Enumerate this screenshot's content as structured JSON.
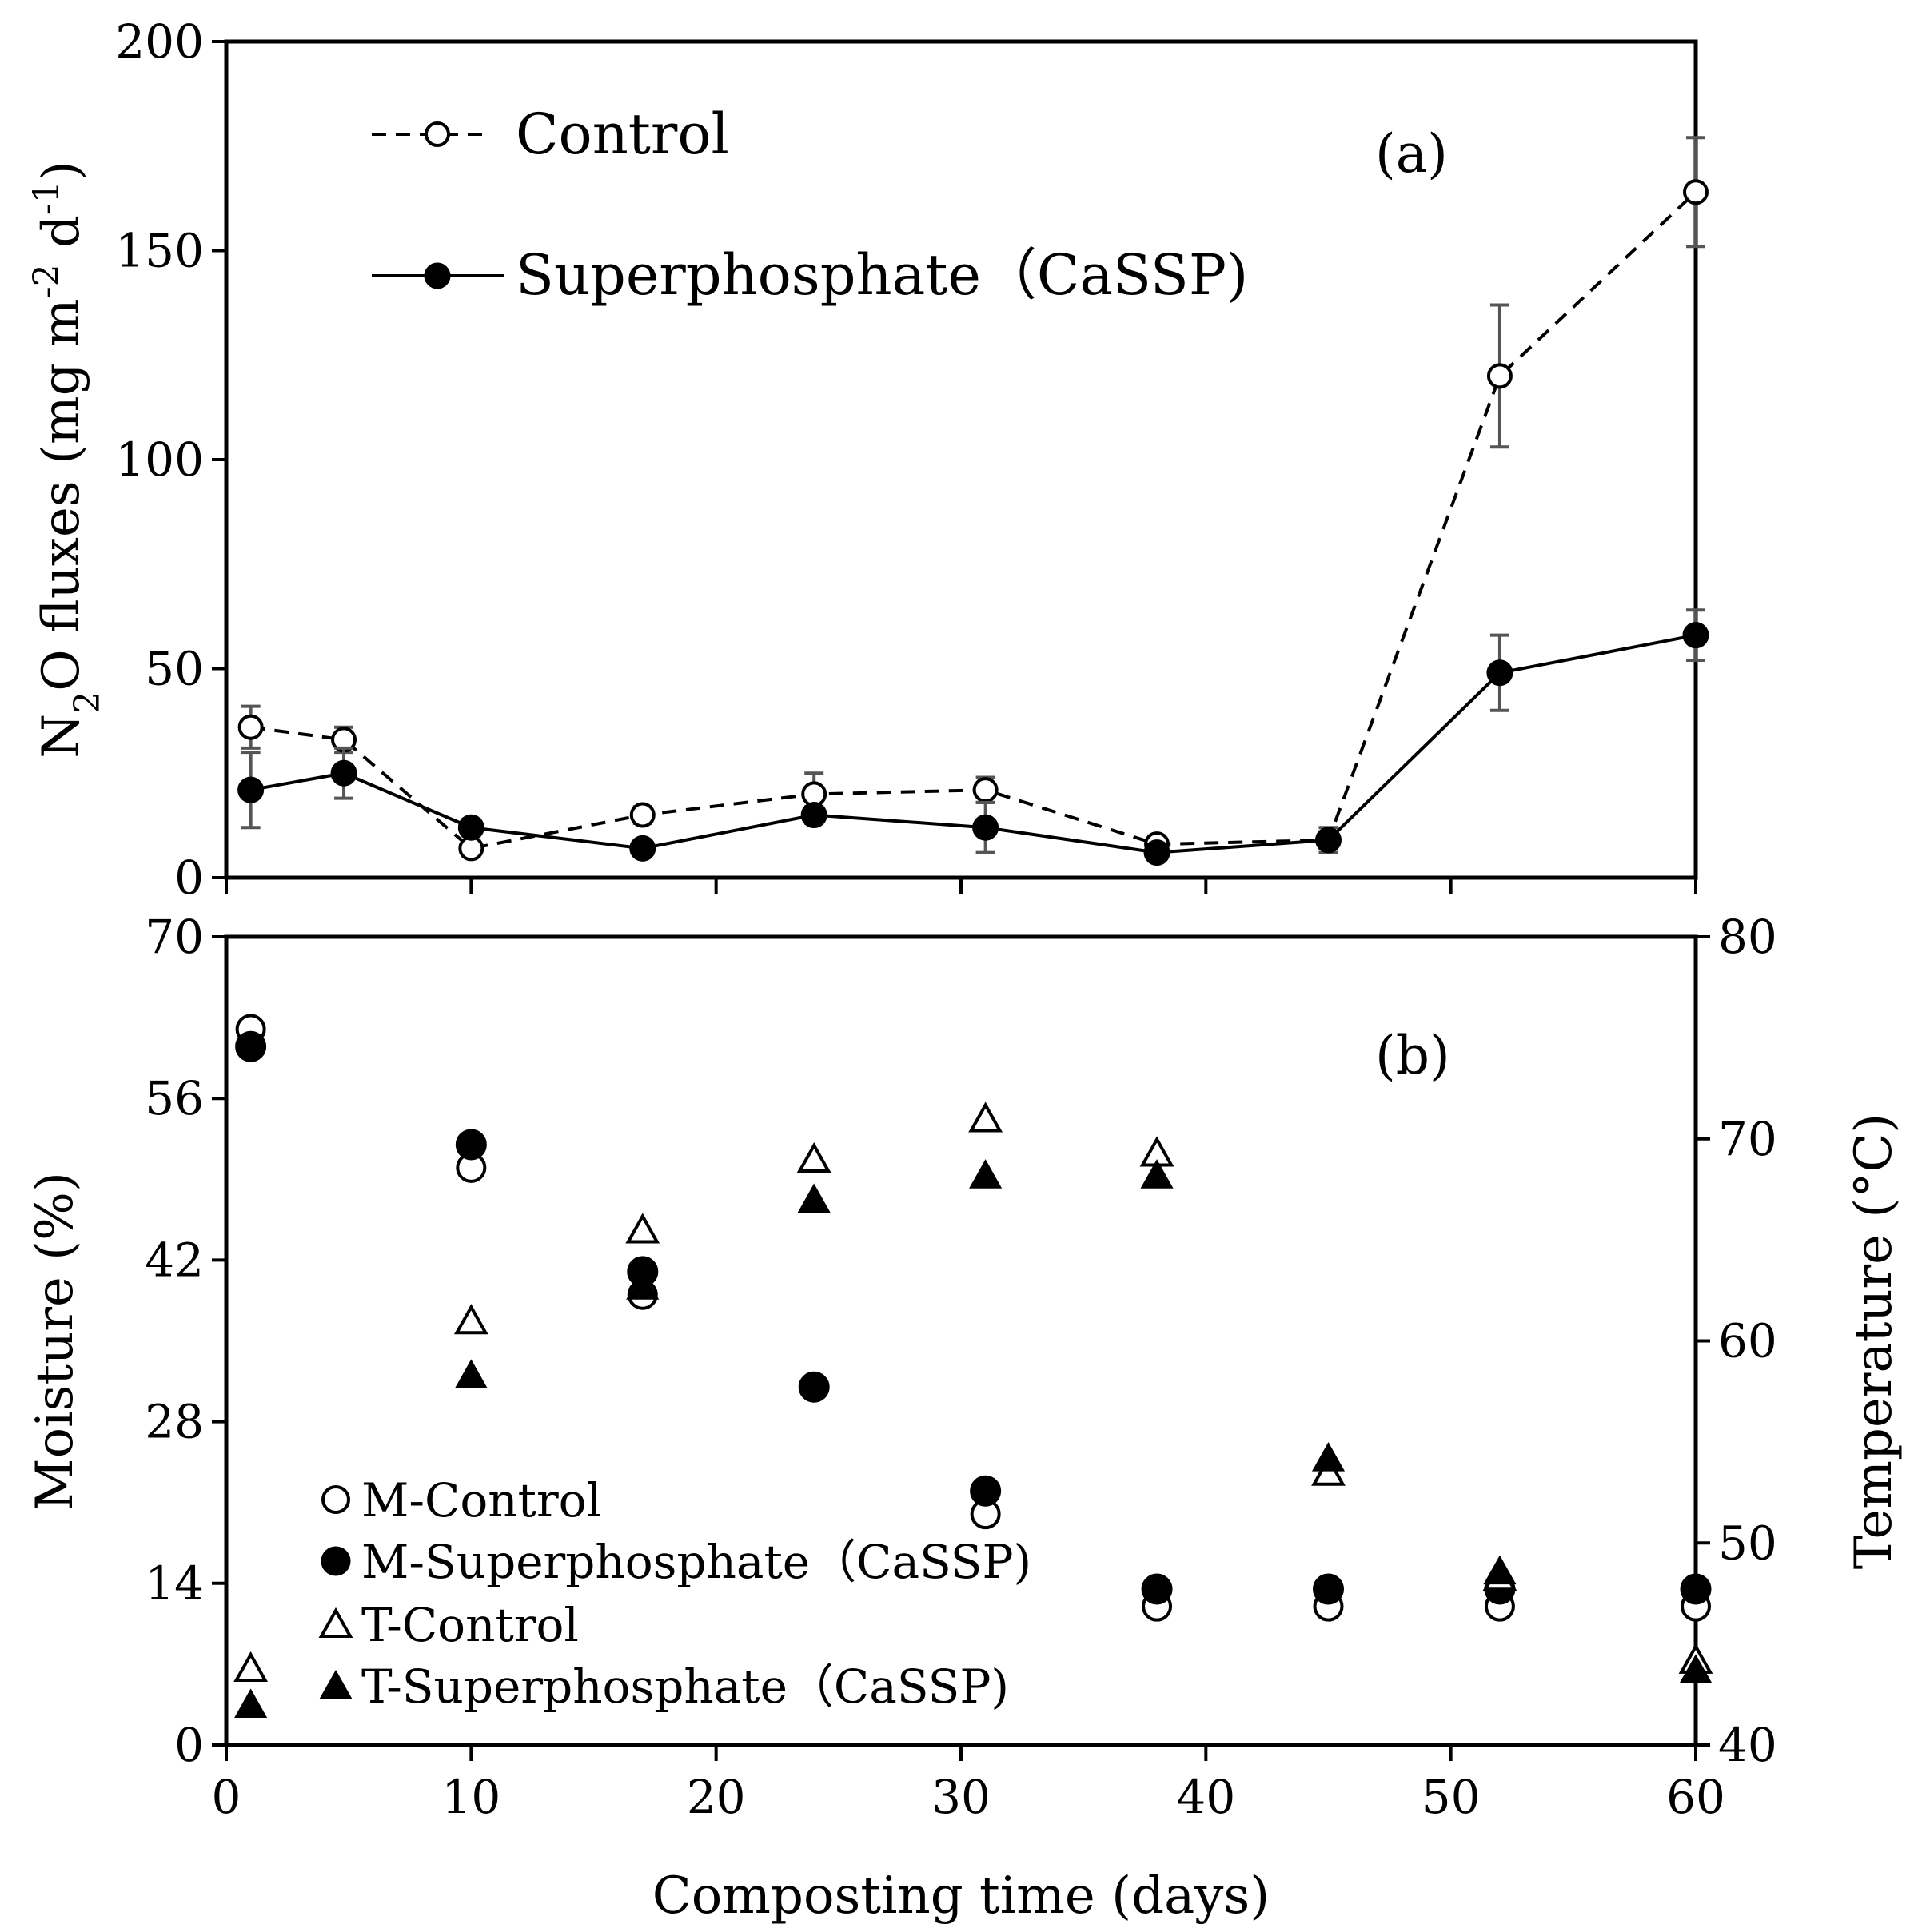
{
  "chart_data": [
    {
      "type": "line",
      "panel_label": "(a)",
      "ylabel": "N2O fluxes (mg m-2 d-1)",
      "ylabel_parts": {
        "n": "N",
        "sub": "2",
        "mid": "O fluxes (mg m",
        "sup1": "-2",
        "d": " d",
        "sup2": "-1",
        "end": ")"
      },
      "ylim": [
        0,
        200
      ],
      "yticks": [
        "0",
        "50",
        "100",
        "150",
        "200"
      ],
      "xlim": [
        0,
        60
      ],
      "legend_position": "top-left",
      "series": [
        {
          "name": "Control",
          "style": "dashed, open circle",
          "x": [
            1,
            4.8,
            10,
            17,
            24,
            31,
            38,
            45,
            52,
            60
          ],
          "y": [
            36,
            33,
            7,
            15,
            20,
            21,
            8,
            9,
            120,
            164
          ],
          "err": [
            5,
            3,
            2,
            2,
            5,
            3,
            2,
            2,
            17,
            13
          ]
        },
        {
          "name": "Superphosphate（CaSSP)",
          "style": "solid, filled circle",
          "x": [
            1,
            4.8,
            10,
            17,
            24,
            31,
            38,
            45,
            52,
            60
          ],
          "y": [
            21,
            25,
            12,
            7,
            15,
            12,
            6,
            9,
            49,
            58
          ],
          "err": [
            9,
            6,
            2,
            2,
            2,
            6,
            2,
            3,
            9,
            6
          ]
        }
      ]
    },
    {
      "type": "scatter",
      "panel_label": "(b)",
      "xlabel": "Composting time (days)",
      "ylabel": "Moisture (%)",
      "y2label": "Temperature (°C)",
      "xlim": [
        0,
        60
      ],
      "xticks": [
        "0",
        "10",
        "20",
        "30",
        "40",
        "50",
        "60"
      ],
      "ylim": [
        0,
        70
      ],
      "yticks": [
        "0",
        "14",
        "28",
        "42",
        "56",
        "70"
      ],
      "y2lim": [
        40,
        80
      ],
      "y2ticks": [
        "40",
        "50",
        "60",
        "70",
        "80"
      ],
      "legend_position": "bottom-left",
      "series": [
        {
          "name": "M-Control",
          "axis": "left",
          "marker": "open-circle",
          "x": [
            1,
            10,
            17,
            24,
            31,
            38,
            45,
            52,
            60
          ],
          "y": [
            62,
            50,
            39,
            31,
            20,
            12,
            12,
            12,
            12
          ]
        },
        {
          "name": "M-Superphosphate（CaSSP)",
          "axis": "left",
          "marker": "filled-circle",
          "x": [
            1,
            10,
            17,
            24,
            31,
            38,
            45,
            52,
            60
          ],
          "y": [
            60.5,
            52,
            41,
            31,
            22,
            13.5,
            13.5,
            13.5,
            13.5
          ]
        },
        {
          "name": "T-Control",
          "axis": "right",
          "marker": "open-triangle",
          "x": [
            1,
            10,
            17,
            24,
            31,
            38,
            45,
            52,
            60
          ],
          "y": [
            43.8,
            61,
            65.5,
            69,
            71,
            69.3,
            53.5,
            48.3,
            44.2
          ]
        },
        {
          "name": "T-Superphosphate（CaSSP)",
          "axis": "right",
          "marker": "filled-triangle",
          "x": [
            1,
            10,
            17,
            24,
            31,
            38,
            45,
            52,
            60
          ],
          "y": [
            42,
            58.3,
            62.7,
            67,
            68.2,
            68.2,
            54.2,
            48.6,
            43.7
          ]
        }
      ]
    }
  ]
}
